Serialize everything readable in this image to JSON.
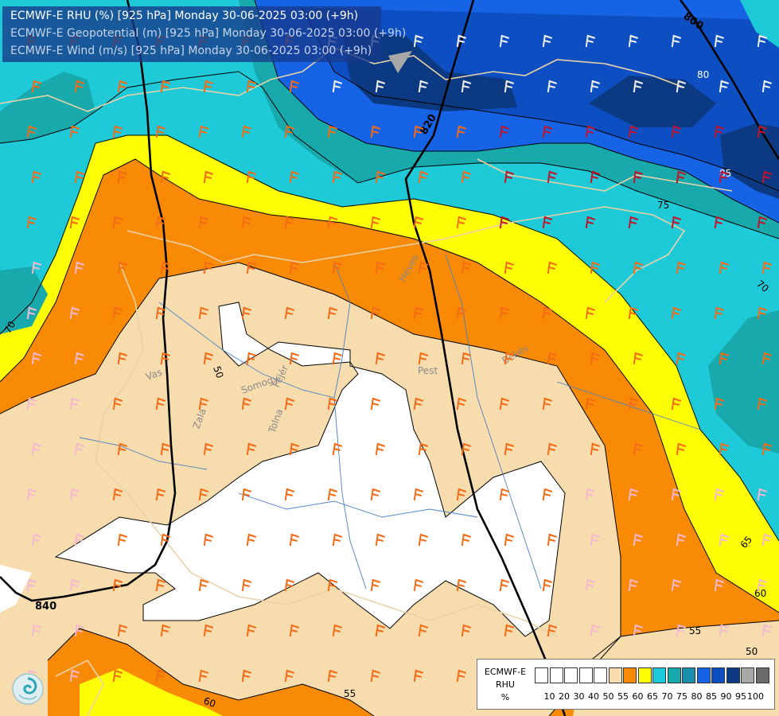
{
  "title": {
    "line1": "ECMWF-E RHU (%) [925 hPa] Monday 30-06-2025 03:00 (+9h)",
    "line2": "ECMWF-E Geopotential (m) [925 hPa] Monday 30-06-2025 03:00 (+9h)",
    "line3": "ECMWF-E Wind (m/s) [925 hPa] Monday 30-06-2025 03:00 (+9h)"
  },
  "colors": {
    "title_line1": "#ffffff",
    "title_line23": "#c8d4ee",
    "rhu_scale": [
      "#ffffff",
      "#ffffff",
      "#ffffff",
      "#ffffff",
      "#ffffff",
      "#f7dcad",
      "#f98a05",
      "#fdfd05",
      "#1ecad7",
      "#18a9ad",
      "#1a90ad",
      "#1763e6",
      "#0d4fc2",
      "#0c3a82",
      "#a8a8a8",
      "#6b6b6b"
    ]
  },
  "legend": {
    "title_line1": "ECMWF-E",
    "title_line2": "RHU",
    "title_line3": "%",
    "ticks": [
      "10",
      "20",
      "30",
      "40",
      "50",
      "55",
      "60",
      "65",
      "70",
      "75",
      "80",
      "85",
      "90",
      "95",
      "100"
    ]
  },
  "contour_labels": {
    "rhu": [
      "50",
      "55",
      "55",
      "60",
      "60",
      "65",
      "70",
      "70",
      "75",
      "80",
      "85",
      "50"
    ],
    "geopotential": [
      "800",
      "820",
      "840"
    ]
  },
  "region_labels": [
    "Vas",
    "Zala",
    "Somogy",
    "Fejér",
    "Tolna",
    "Pest",
    "Heves",
    "Békés"
  ],
  "logo": "ogimet-logo-icon"
}
